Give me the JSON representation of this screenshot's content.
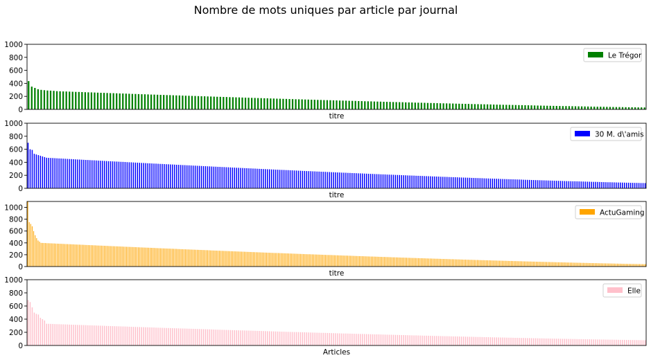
{
  "figure": {
    "title": "Nombre de mots uniques par article par journal"
  },
  "chart_data": [
    {
      "type": "bar",
      "series": [
        {
          "name": "Le Trégor",
          "color": "#008000",
          "count": 197,
          "top": [
            435,
            350,
            330,
            310,
            300,
            295,
            290,
            288,
            285,
            280
          ],
          "end": 30
        }
      ],
      "xlabel": "titre",
      "ylim": [
        0,
        1000
      ],
      "yticks": [
        0,
        200,
        400,
        600,
        800,
        1000
      ],
      "legend": "top-right"
    },
    {
      "type": "bar",
      "series": [
        {
          "name": "30 M. d\\'amis",
          "color": "#0000ff",
          "count": 300,
          "top": [
            700,
            600,
            590,
            530,
            520,
            510,
            500,
            490,
            480,
            470
          ],
          "end": 80
        }
      ],
      "xlabel": "titre",
      "ylim": [
        0,
        1000
      ],
      "yticks": [
        0,
        200,
        400,
        600,
        800,
        1000
      ],
      "legend": "top-right"
    },
    {
      "type": "bar",
      "series": [
        {
          "name": "ActuGaming",
          "color": "#ffa500",
          "count": 420,
          "top": [
            1100,
            750,
            720,
            680,
            600,
            530,
            480,
            440,
            420,
            400
          ],
          "end": 40
        }
      ],
      "xlabel": "titre",
      "ylim": [
        0,
        1100
      ],
      "yticks": [
        0,
        200,
        400,
        600,
        800,
        1000
      ],
      "legend": "top-right"
    },
    {
      "type": "bar",
      "series": [
        {
          "name": "Elle",
          "color": "#ffc0cb",
          "count": 300,
          "top": [
            690,
            660,
            580,
            500,
            480,
            470,
            420,
            400,
            380,
            330
          ],
          "end": 80
        }
      ],
      "xlabel": "Articles",
      "ylim": [
        0,
        1000
      ],
      "yticks": [
        0,
        200,
        400,
        600,
        800,
        1000
      ],
      "legend": "top-right"
    }
  ]
}
